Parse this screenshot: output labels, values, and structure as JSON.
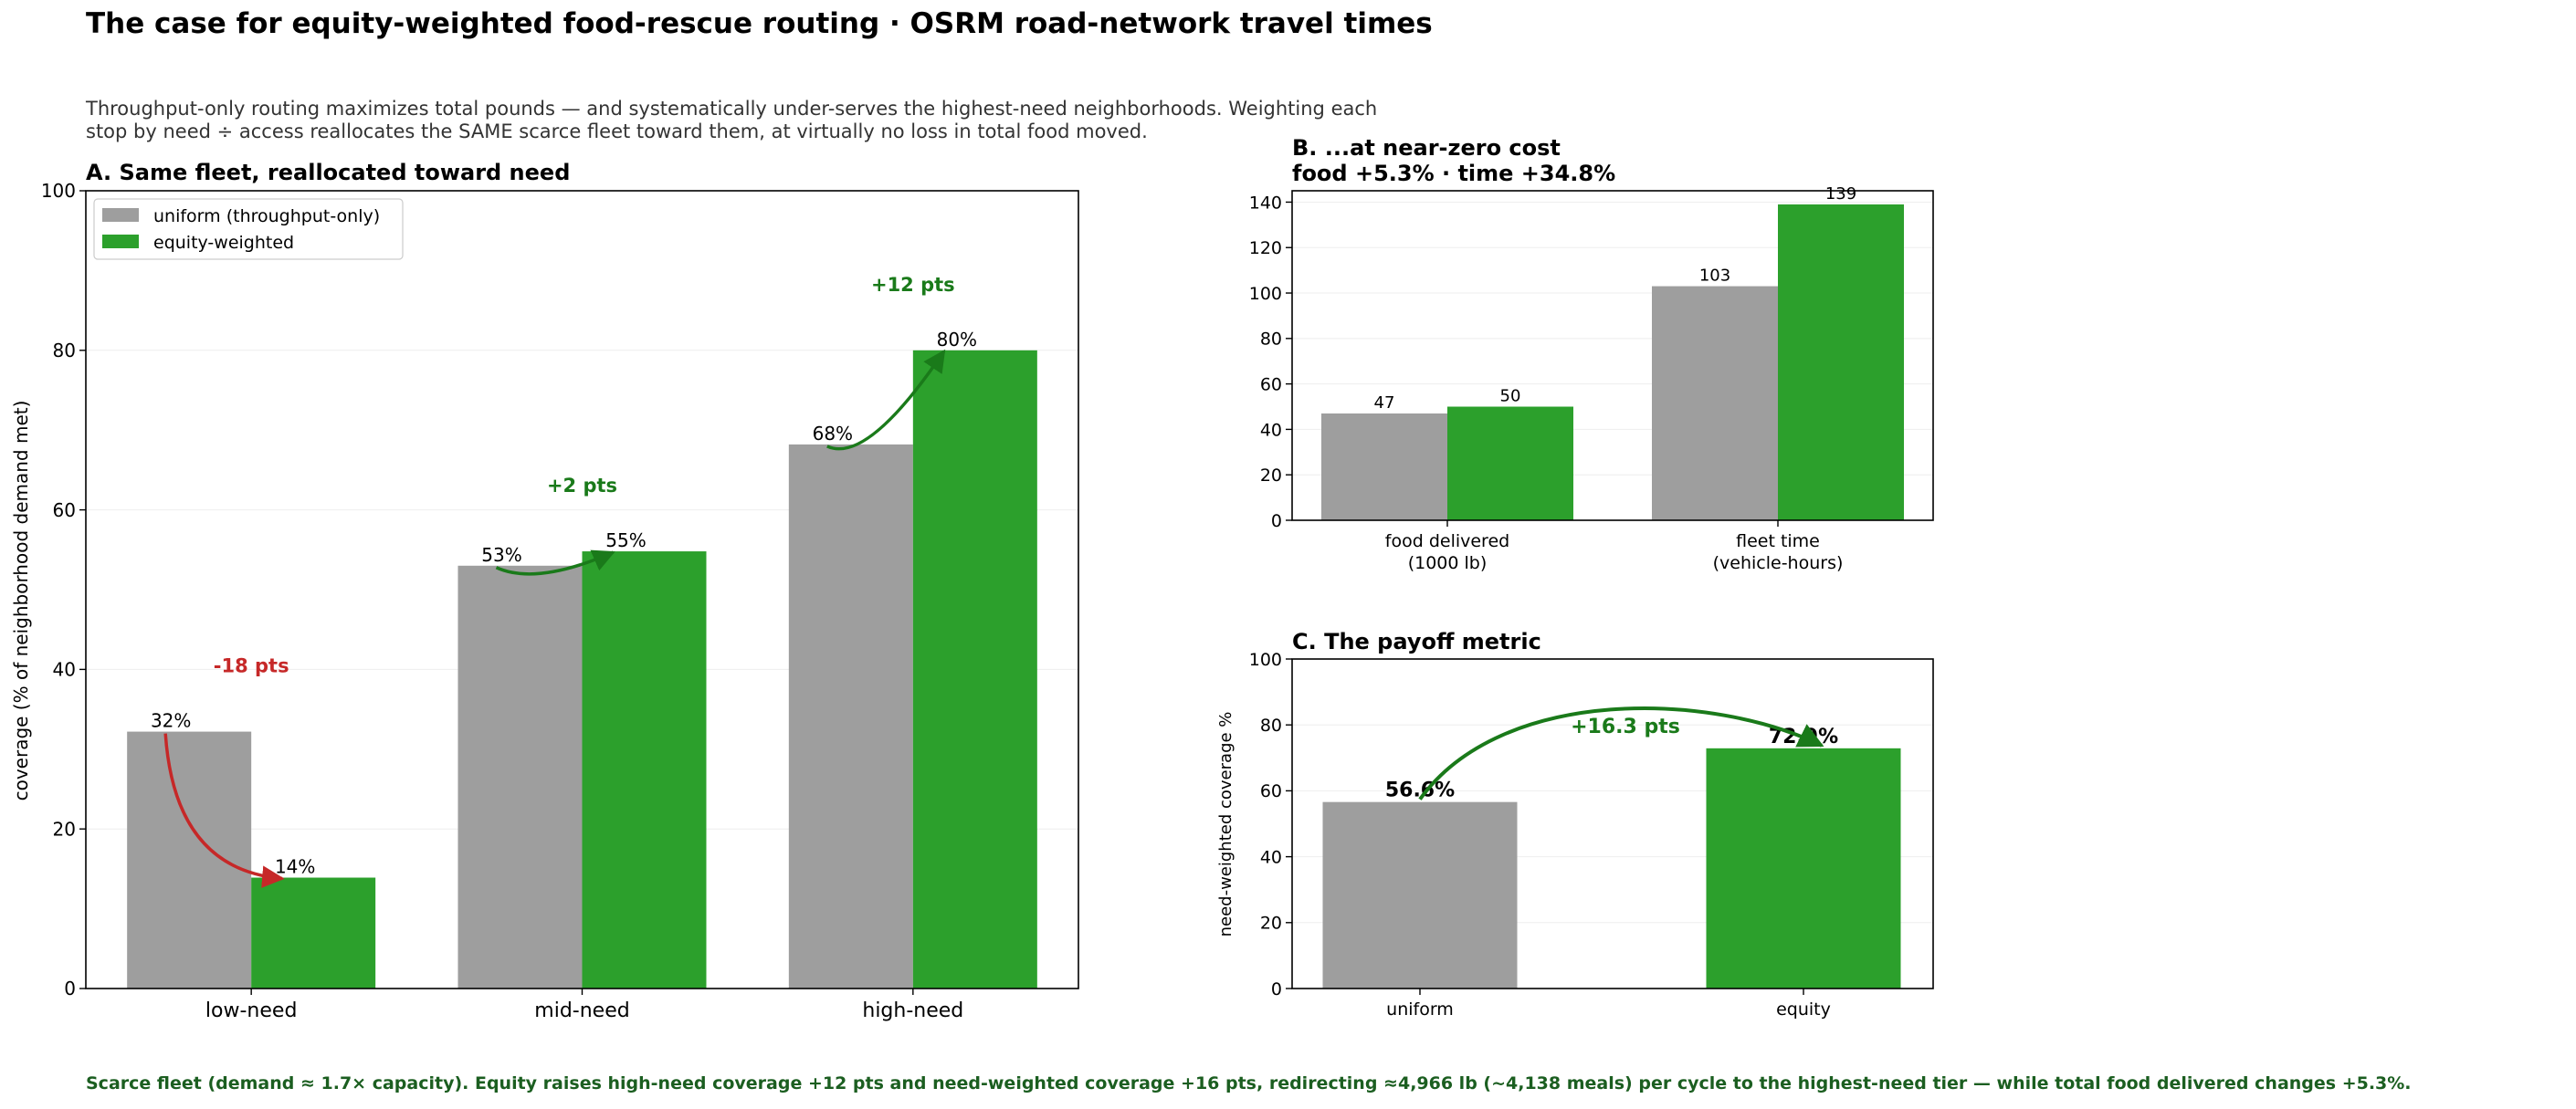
{
  "header": {
    "title": "The case for equity-weighted food-rescue routing   ·   OSRM road-network travel times",
    "subtitle_lines": [
      "Throughput-only routing maximizes total pounds — and systematically under-serves the highest-need neighborhoods. Weighting each",
      "stop by need ÷ access reallocates the SAME scarce fleet toward them, at virtually no loss in total food moved."
    ]
  },
  "footer": {
    "note": "Scarce fleet (demand ≈ 1.7× capacity).  Equity raises high-need coverage +12 pts and need-weighted coverage +16 pts, redirecting ≈4,966 lb (~4,138 meals) per cycle to the highest-need tier — while total food delivered changes +5.3%."
  },
  "colors": {
    "uniform": "#9e9e9e",
    "equity": "#2ca02c",
    "gain": "#1a7a1a",
    "loss": "#c62828",
    "footer": "#1b5e20"
  },
  "chart_data": [
    {
      "id": "A",
      "type": "bar",
      "title": "A.  Same fleet, reallocated toward need",
      "ylabel": "coverage  (% of neighborhood demand met)",
      "ylim": [
        0,
        100
      ],
      "yticks": [
        0,
        20,
        40,
        60,
        80,
        100
      ],
      "categories": [
        "low-need",
        "mid-need",
        "high-need"
      ],
      "series": [
        {
          "name": "uniform (throughput-only)",
          "values": [
            32.2,
            53.0,
            68.2
          ],
          "labels": [
            "32%",
            "53%",
            "68%"
          ]
        },
        {
          "name": "equity-weighted",
          "values": [
            13.9,
            54.8,
            80.0
          ],
          "labels": [
            "14%",
            "55%",
            "80%"
          ]
        }
      ],
      "annotations": [
        "-18 pts",
        "+2 pts",
        "+12 pts"
      ],
      "legend": "top-left",
      "grid": true
    },
    {
      "id": "B",
      "type": "bar",
      "title": "B.  ...at near-zero cost",
      "title_line2": "food +5.3%   ·   time +34.8%",
      "ylim": [
        0,
        145
      ],
      "yticks": [
        0,
        20,
        40,
        60,
        80,
        100,
        120,
        140
      ],
      "categories": [
        [
          "food delivered",
          "(1000 lb)"
        ],
        [
          "fleet time",
          "(vehicle-hours)"
        ]
      ],
      "series": [
        {
          "name": "uniform",
          "values": [
            47,
            103
          ],
          "labels": [
            "47",
            "103"
          ]
        },
        {
          "name": "equity",
          "values": [
            50,
            139
          ],
          "labels": [
            "50",
            "139"
          ]
        }
      ],
      "grid": true
    },
    {
      "id": "C",
      "type": "bar",
      "title": "C.  The payoff metric",
      "ylabel": "need-weighted coverage %",
      "ylim": [
        0,
        100
      ],
      "yticks": [
        0,
        20,
        40,
        60,
        80,
        100
      ],
      "categories": [
        "uniform",
        "equity"
      ],
      "values": [
        56.6,
        72.9
      ],
      "labels": [
        "56.6%",
        "72.9%"
      ],
      "annotation": "+16.3 pts",
      "grid": true
    }
  ]
}
